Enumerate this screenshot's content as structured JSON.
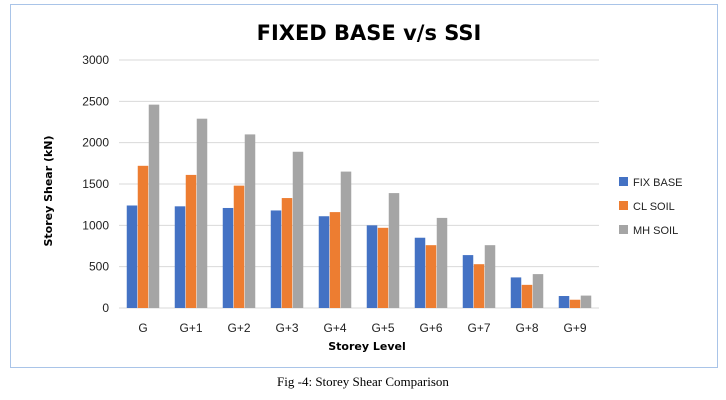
{
  "caption": "Fig -4: Storey Shear Comparison",
  "chart_data": {
    "type": "bar",
    "title": "FIXED BASE v/s SSI",
    "xlabel": "Storey Level",
    "ylabel": "Storey Shear (kN)",
    "ylim": [
      0,
      3000
    ],
    "yticks": [
      "0",
      "500",
      "1000",
      "1500",
      "2000",
      "2500",
      "3000"
    ],
    "grid": true,
    "legend_position": "right",
    "categories": [
      "G",
      "G+1",
      "G+2",
      "G+3",
      "G+4",
      "G+5",
      "G+6",
      "G+7",
      "G+8",
      "G+9"
    ],
    "series": [
      {
        "name": "FIX BASE",
        "color": "#4472c4",
        "values": [
          1240,
          1230,
          1210,
          1180,
          1110,
          1000,
          850,
          640,
          370,
          145
        ]
      },
      {
        "name": "CL SOIL",
        "color": "#ed7d31",
        "values": [
          1720,
          1610,
          1480,
          1330,
          1160,
          970,
          760,
          530,
          280,
          100
        ]
      },
      {
        "name": "MH SOIL",
        "color": "#a5a5a5",
        "values": [
          2460,
          2290,
          2100,
          1890,
          1650,
          1390,
          1090,
          760,
          410,
          150
        ]
      }
    ]
  }
}
